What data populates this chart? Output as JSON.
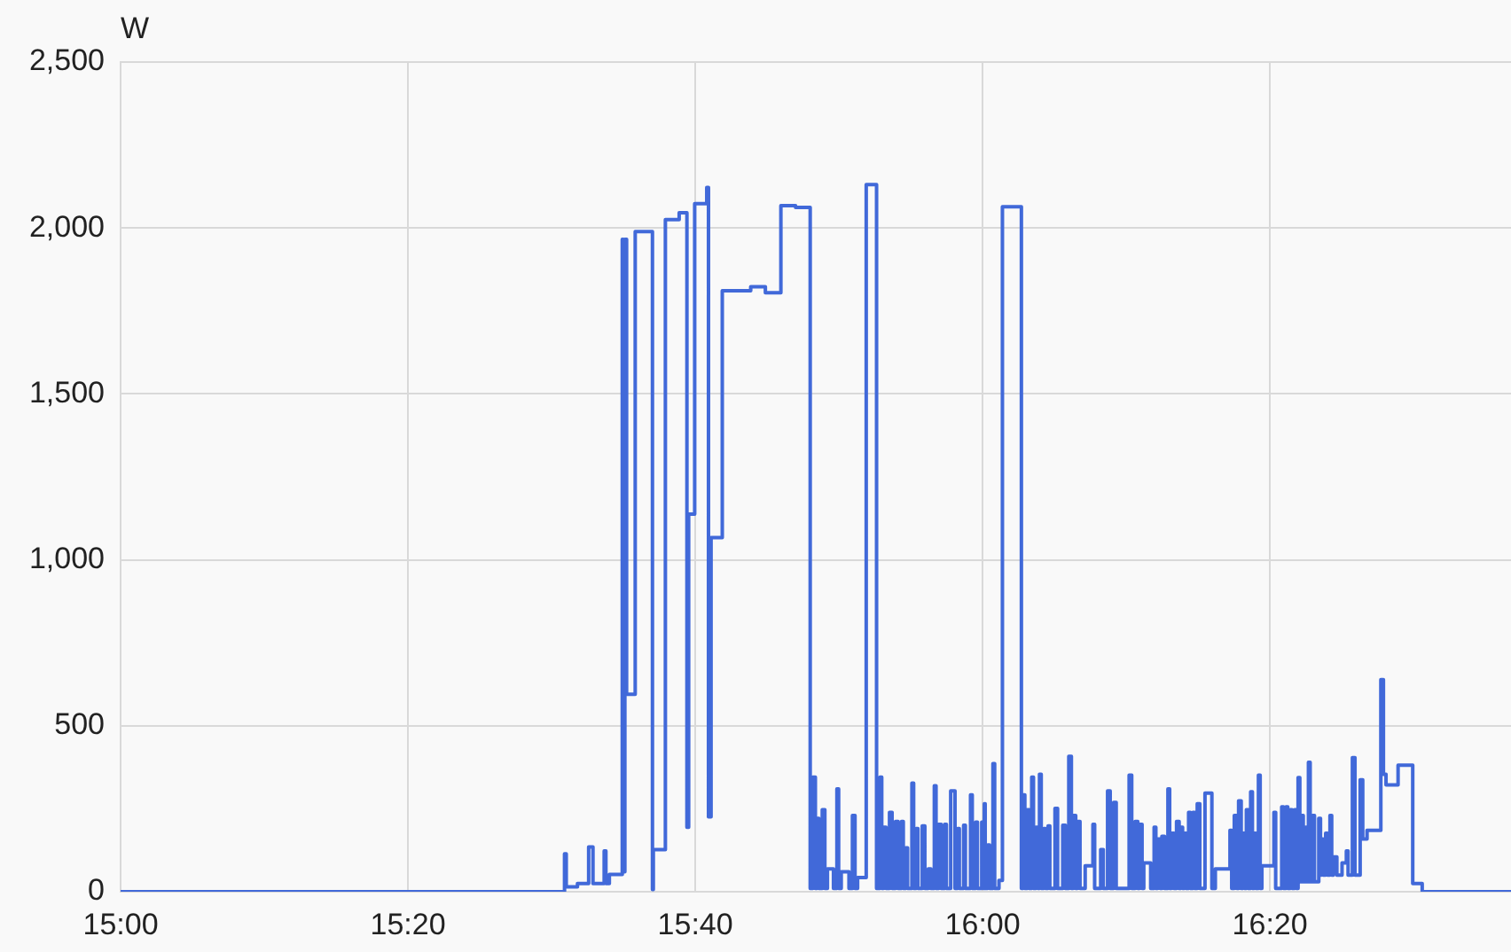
{
  "chart_data": {
    "type": "step",
    "ylabel": "W",
    "color": "#4169d9",
    "x": [
      15.0,
      15.515,
      15.517,
      15.53,
      15.543,
      15.548,
      15.561,
      15.563,
      15.567,
      15.582,
      15.583,
      15.585,
      15.587,
      15.597,
      15.617,
      15.618,
      15.632,
      15.648,
      15.657,
      15.659,
      15.666,
      15.68,
      15.682,
      15.685,
      15.698,
      15.731,
      15.748,
      15.766,
      15.783,
      15.8,
      15.803,
      15.806,
      15.808,
      15.81,
      15.814,
      15.817,
      15.82,
      15.827,
      15.831,
      15.833,
      15.836,
      15.845,
      15.849,
      15.852,
      15.855,
      15.865,
      15.877,
      15.881,
      15.883,
      15.885,
      15.888,
      15.892,
      15.895,
      15.899,
      15.902,
      15.906,
      15.908,
      15.911,
      15.913,
      15.918,
      15.92,
      15.923,
      15.925,
      15.93,
      15.933,
      15.937,
      15.94,
      15.944,
      15.946,
      15.949,
      15.952,
      15.956,
      15.958,
      15.963,
      15.968,
      15.971,
      15.973,
      15.978,
      15.98,
      15.986,
      15.988,
      15.992,
      15.994,
      15.999,
      16.001,
      16.002,
      16.003,
      16.006,
      16.008,
      16.012,
      16.014,
      16.019,
      16.023,
      16.045,
      16.047,
      16.049,
      16.052,
      16.054,
      16.057,
      16.059,
      16.062,
      16.064,
      16.066,
      16.068,
      16.071,
      16.073,
      16.076,
      16.078,
      16.084,
      16.087,
      16.093,
      16.096,
      16.1,
      16.103,
      16.105,
      16.108,
      16.11,
      16.113,
      16.119,
      16.128,
      16.13,
      16.137,
      16.14,
      16.145,
      16.148,
      16.152,
      16.155,
      16.17,
      16.173,
      16.177,
      16.18,
      16.182,
      16.185,
      16.187,
      16.195,
      16.199,
      16.201,
      16.203,
      16.206,
      16.208,
      16.211,
      16.215,
      16.217,
      16.219,
      16.222,
      16.225,
      16.228,
      16.23,
      16.232,
      16.234,
      16.236,
      16.239,
      16.241,
      16.244,
      16.246,
      16.249,
      16.252,
      16.258,
      16.266,
      16.27,
      16.287,
      16.289,
      16.292,
      16.295,
      16.297,
      16.3,
      16.302,
      16.304,
      16.306,
      16.308,
      16.311,
      16.313,
      16.315,
      16.317,
      16.32,
      16.322,
      16.324,
      16.338,
      16.34,
      16.347,
      16.349,
      16.352,
      16.354,
      16.357,
      16.359,
      16.362,
      16.364,
      16.366,
      16.368,
      16.37,
      16.372,
      16.375,
      16.377,
      16.378,
      16.38,
      16.383,
      16.385,
      16.39,
      16.392,
      16.393,
      16.395,
      16.398,
      16.4,
      16.403,
      16.405,
      16.407,
      16.411,
      16.417,
      16.422,
      16.424,
      16.429,
      16.432,
      16.438,
      16.441,
      16.446,
      16.462,
      16.465,
      16.468,
      16.482,
      16.499,
      16.51,
      16.613
    ],
    "values": [
      0,
      114,
      15,
      25,
      135,
      25,
      123,
      25,
      52,
      1966,
      60,
      1966,
      595,
      1989,
      7,
      127,
      2025,
      2046,
      194,
      1138,
      2073,
      2122,
      226,
      1067,
      1811,
      1823,
      1805,
      2067,
      2062,
      10,
      345,
      10,
      221,
      10,
      247,
      10,
      69,
      10,
      310,
      10,
      60,
      10,
      230,
      10,
      43,
      2131,
      10,
      345,
      10,
      194,
      10,
      239,
      10,
      212,
      10,
      212,
      10,
      132,
      10,
      327,
      10,
      190,
      10,
      198,
      10,
      69,
      10,
      319,
      10,
      203,
      10,
      203,
      10,
      304,
      10,
      190,
      10,
      200,
      10,
      292,
      10,
      210,
      10,
      210,
      10,
      265,
      10,
      141,
      10,
      386,
      10,
      34,
      2064,
      10,
      292,
      10,
      247,
      10,
      345,
      10,
      194,
      10,
      354,
      10,
      190,
      10,
      198,
      10,
      251,
      10,
      200,
      10,
      408,
      10,
      230,
      10,
      212,
      10,
      78,
      203,
      10,
      127,
      10,
      304,
      10,
      269,
      10,
      351,
      10,
      212,
      10,
      203,
      10,
      87,
      10,
      194,
      10,
      159,
      10,
      167,
      10,
      310,
      10,
      176,
      10,
      212,
      10,
      194,
      10,
      176,
      10,
      239,
      10,
      239,
      10,
      265,
      10,
      297,
      10,
      69,
      185,
      10,
      230,
      10,
      274,
      10,
      176,
      10,
      247,
      10,
      301,
      10,
      176,
      10,
      351,
      10,
      78,
      239,
      10,
      256,
      10,
      256,
      10,
      247,
      10,
      247,
      10,
      344,
      30,
      230,
      30,
      194,
      30,
      390,
      30,
      230,
      30,
      221,
      50,
      159,
      50,
      176,
      50,
      230,
      50,
      105,
      50,
      87,
      123,
      50,
      404,
      50,
      337,
      159,
      185,
      639,
      354,
      322,
      381,
      25,
      0,
      0
    ],
    "xlim": [
      15,
      16.613
    ],
    "xticks": [
      {
        "value": 15,
        "label": "15:00"
      },
      {
        "value": 15.3333,
        "label": "15:20"
      },
      {
        "value": 15.6667,
        "label": "15:40"
      },
      {
        "value": 16,
        "label": "16:00"
      },
      {
        "value": 16.3333,
        "label": "16:20"
      }
    ],
    "ylim": [
      0,
      2500
    ],
    "yticks": [
      0,
      500,
      {
        "value": 1000,
        "label": "1,000"
      },
      {
        "value": 1500,
        "label": "1,500"
      },
      {
        "value": 2000,
        "label": "2,000"
      },
      {
        "value": 2500,
        "label": "2,500"
      }
    ],
    "grid": true
  }
}
